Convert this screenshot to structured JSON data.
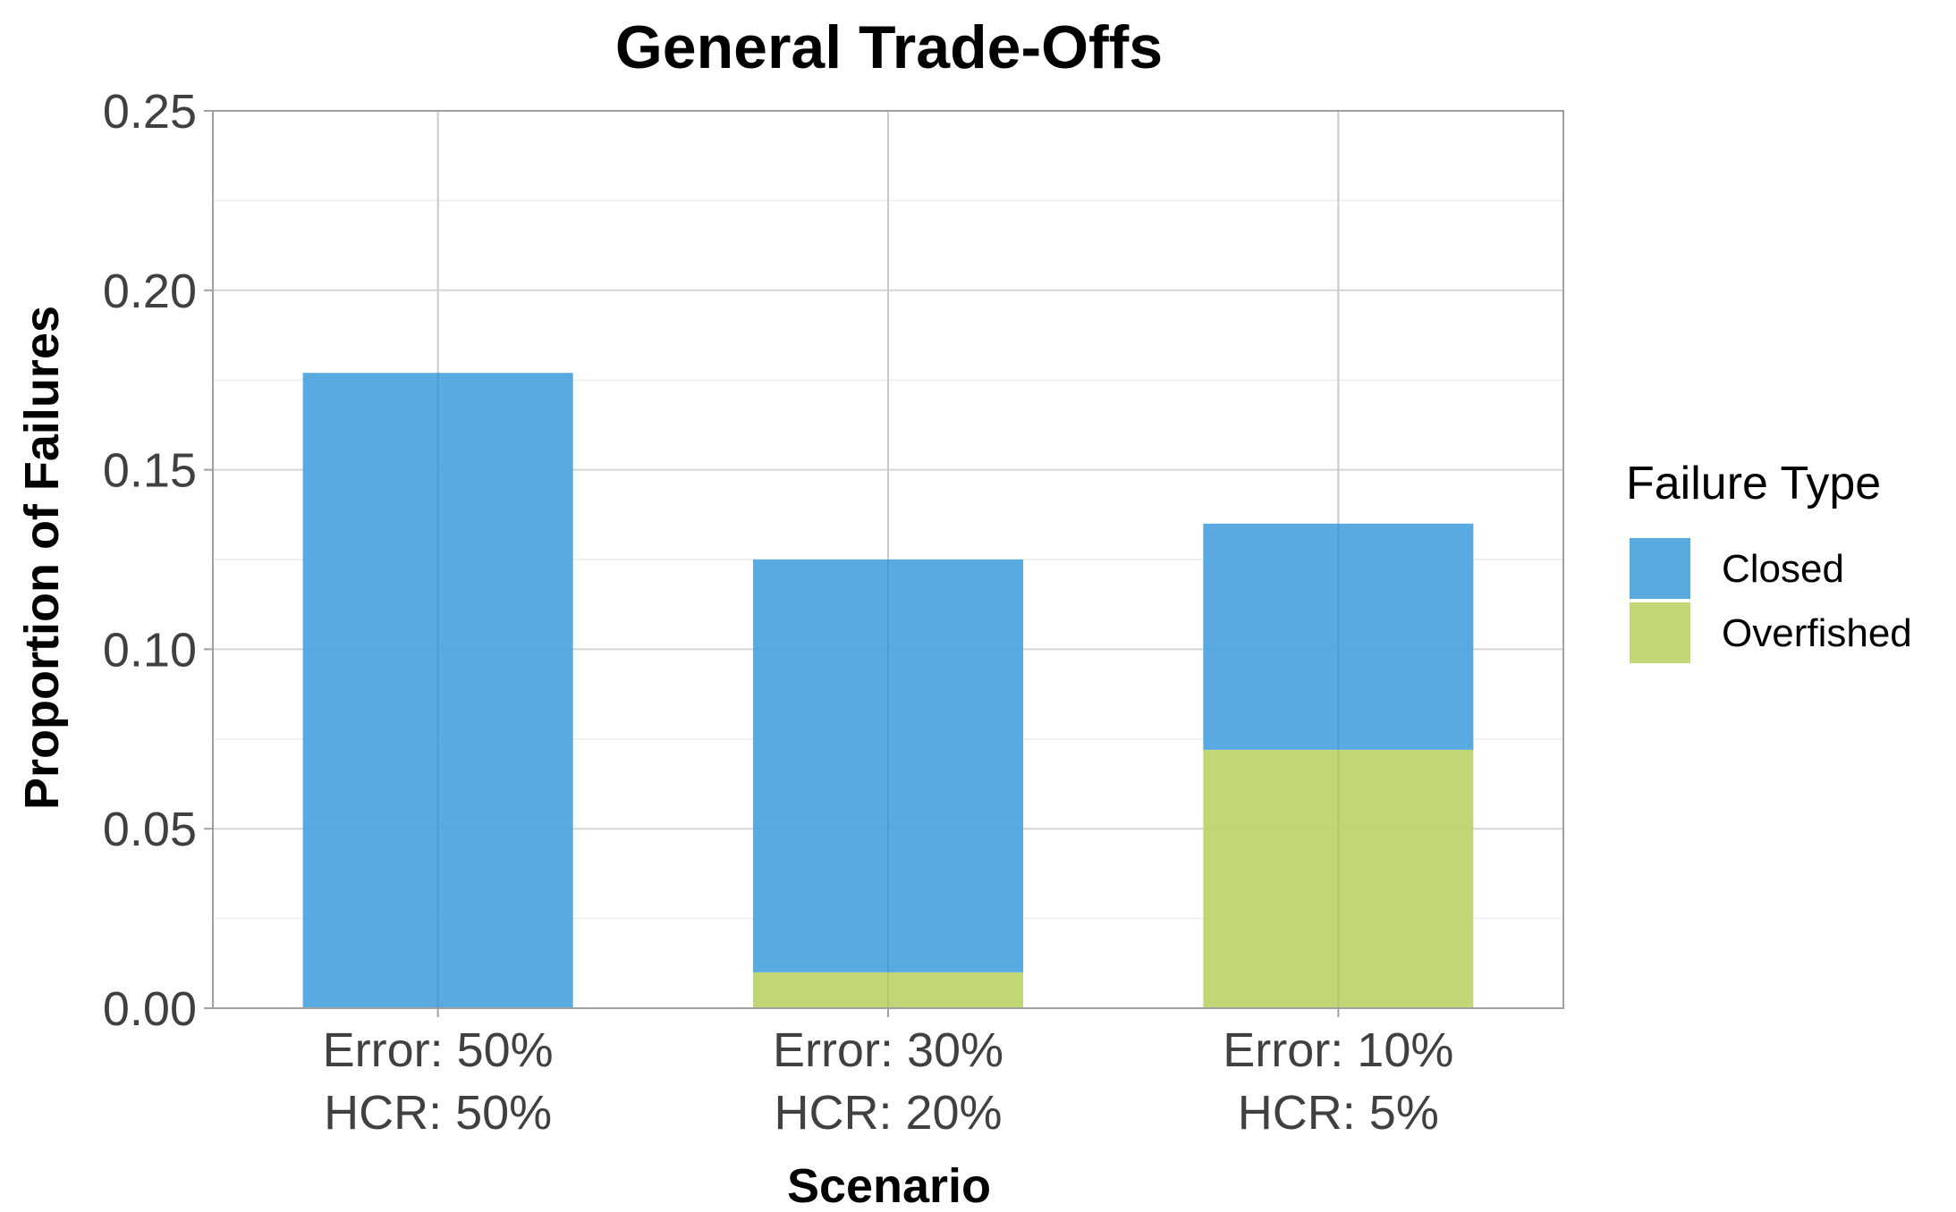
{
  "chart_data": {
    "type": "bar",
    "stacked": true,
    "title": "General Trade-Offs",
    "xlabel": "Scenario",
    "ylabel": "Proportion of Failures",
    "ylim": [
      0,
      0.25
    ],
    "yticks": [
      "0.00",
      "0.05",
      "0.10",
      "0.15",
      "0.20",
      "0.25"
    ],
    "grid": true,
    "legend_position": "right",
    "categories": [
      [
        "Error: 50%",
        "HCR: 50%"
      ],
      [
        "Error: 30%",
        "HCR: 20%"
      ],
      [
        "Error: 10%",
        "HCR: 5%"
      ]
    ],
    "series": [
      {
        "name": "Overfished",
        "color": "#bcd46a",
        "values": [
          0.0,
          0.01,
          0.072
        ]
      },
      {
        "name": "Closed",
        "color": "#4ba3de",
        "values": [
          0.177,
          0.115,
          0.063
        ]
      }
    ],
    "legend": {
      "title": "Failure Type",
      "items": [
        {
          "label": "Closed",
          "color": "#4ba3de"
        },
        {
          "label": "Overfished",
          "color": "#bcd46a"
        }
      ]
    }
  }
}
